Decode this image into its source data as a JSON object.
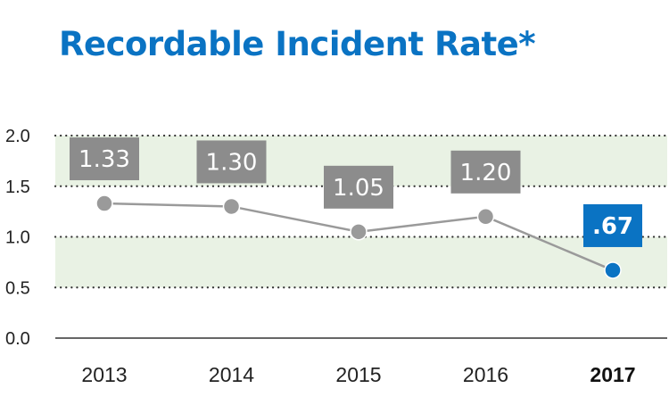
{
  "chart_data": {
    "type": "line",
    "title": "Recordable Incident Rate*",
    "categories": [
      "2013",
      "2014",
      "2015",
      "2016",
      "2017"
    ],
    "values": [
      1.33,
      1.3,
      1.05,
      1.2,
      0.67
    ],
    "data_labels": [
      "1.33",
      "1.30",
      "1.05",
      "1.20",
      ".67"
    ],
    "highlight_index": 4,
    "yticks": [
      "0.0",
      "0.5",
      "1.0",
      "1.5",
      "2.0"
    ],
    "ylim": [
      0,
      2.0
    ],
    "grid": true,
    "xlabel": "",
    "ylabel": "",
    "colors": {
      "title": "#0a73c3",
      "line": "#9a9a9a",
      "label_box": "#8c8c8c",
      "highlight": "#0a73c3",
      "band": "#e9f2e4",
      "grid": "#333333",
      "axis": "#333333"
    }
  }
}
